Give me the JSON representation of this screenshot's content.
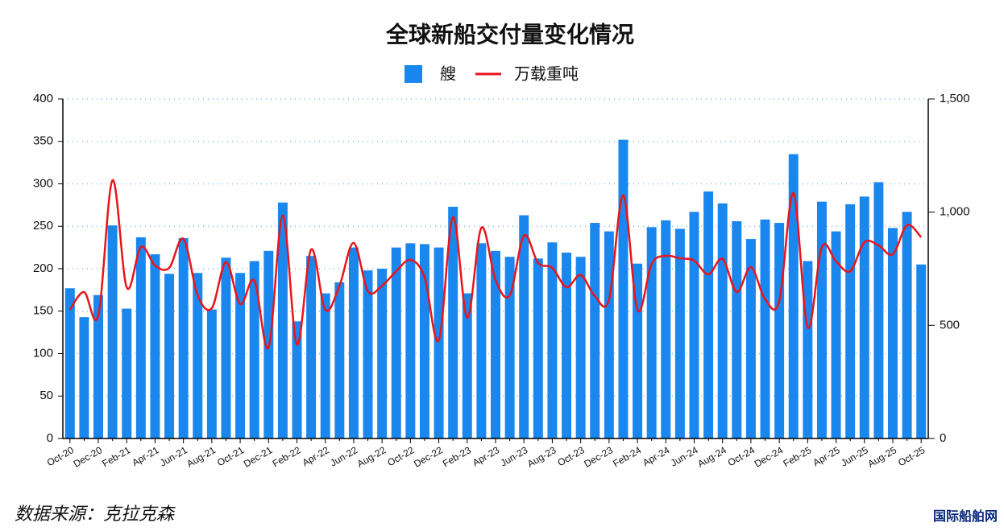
{
  "chart_data": {
    "type": "bar-line",
    "title": "全球新船交付量变化情况",
    "categories": [
      "Oct-20",
      null,
      "Dec-20",
      null,
      "Feb-21",
      null,
      "Apr-21",
      null,
      "Jun-21",
      null,
      "Aug-21",
      null,
      "Oct-21",
      null,
      "Dec-21",
      null,
      "Feb-22",
      null,
      "Apr-22",
      null,
      "Jun-22",
      null,
      "Aug-22",
      null,
      "Oct-22",
      null,
      "Dec-22",
      null,
      "Feb-23",
      null,
      "Apr-23",
      null,
      "Jun-23",
      null,
      "Aug-23",
      null,
      "Oct-23",
      null,
      "Dec-23",
      null,
      "Feb-24",
      null,
      "Apr-24",
      null,
      "Jun-24",
      null,
      "Aug-24",
      null,
      "Oct-24",
      null,
      "Dec-24",
      null,
      "Feb-25",
      null,
      "Apr-25",
      null,
      "Jun-25",
      null,
      "Aug-25",
      null,
      "Oct-25"
    ],
    "series": [
      {
        "name": "艘",
        "color": "#1a87ee",
        "type": "bar",
        "values": [
          177,
          143,
          169,
          251,
          153,
          237,
          217,
          194,
          236,
          195,
          152,
          213,
          195,
          209,
          221,
          278,
          138,
          215,
          171,
          184,
          225,
          198,
          200,
          225,
          230,
          229,
          225,
          273,
          171,
          230,
          221,
          214,
          263,
          212,
          231,
          219,
          214,
          254,
          244,
          352,
          206,
          249,
          257,
          247,
          267,
          291,
          277,
          256,
          235,
          258,
          254,
          335,
          209,
          279,
          244,
          276,
          285,
          302,
          248,
          267,
          205
        ]
      },
      {
        "name": "万载重吨",
        "color": "#e8151b",
        "type": "line",
        "axis": "y2",
        "values": [
          569,
          647,
          544,
          1141,
          668,
          846,
          764,
          754,
          882,
          633,
          576,
          779,
          594,
          697,
          402,
          985,
          416,
          835,
          569,
          675,
          864,
          651,
          675,
          739,
          789,
          711,
          434,
          978,
          533,
          931,
          700,
          633,
          896,
          775,
          754,
          668,
          722,
          629,
          615,
          1074,
          569,
          771,
          807,
          796,
          786,
          725,
          793,
          647,
          757,
          615,
          608,
          1084,
          491,
          846,
          782,
          739,
          867,
          853,
          814,
          942,
          889
        ]
      }
    ],
    "ylim": [
      0,
      400
    ],
    "yticks": [
      0,
      50,
      100,
      150,
      200,
      250,
      300,
      350,
      400
    ],
    "y2lim": [
      0,
      1500
    ],
    "y2ticks": [
      0,
      500,
      {
        "value": 1000,
        "label": "1,000"
      },
      {
        "value": 1500,
        "label": "1,500"
      }
    ],
    "grid": true,
    "legend": "top",
    "note": "数据来源：克拉克森",
    "watermark": "国际船舶网"
  }
}
